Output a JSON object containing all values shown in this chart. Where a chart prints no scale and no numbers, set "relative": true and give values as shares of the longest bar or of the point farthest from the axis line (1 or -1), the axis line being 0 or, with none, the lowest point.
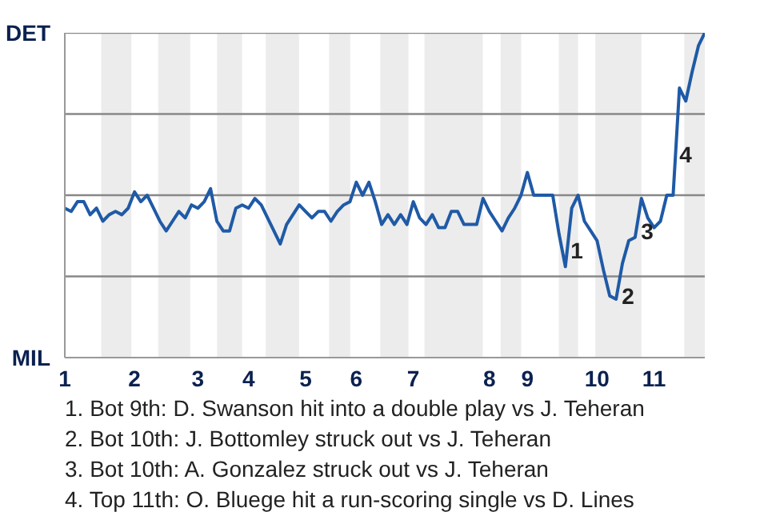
{
  "chart_data": {
    "type": "line",
    "relative": true,
    "categories": [
      "1",
      null,
      null,
      null,
      null,
      null,
      null,
      null,
      null,
      null,
      null,
      "2",
      null,
      null,
      null,
      null,
      null,
      null,
      null,
      null,
      null,
      "3",
      null,
      null,
      null,
      null,
      null,
      null,
      null,
      "4",
      null,
      null,
      null,
      null,
      null,
      null,
      null,
      null,
      "5",
      null,
      null,
      null,
      null,
      null,
      null,
      null,
      "6",
      null,
      null,
      null,
      null,
      null,
      null,
      null,
      null,
      "7",
      null,
      null,
      null,
      null,
      null,
      null,
      null,
      null,
      null,
      null,
      null,
      "8",
      null,
      null,
      null,
      null,
      null,
      "9",
      null,
      null,
      null,
      null,
      null,
      null,
      null,
      null,
      null,
      null,
      "10",
      null,
      null,
      null,
      null,
      null,
      null,
      null,
      null,
      "11",
      null,
      null,
      null,
      null,
      null,
      null,
      null,
      null
    ],
    "series": [
      {
        "color": "#1f5aa6",
        "values": [
          0.46,
          0.45,
          0.48,
          0.48,
          0.44,
          0.46,
          0.42,
          0.44,
          0.45,
          0.44,
          0.46,
          0.51,
          0.48,
          0.5,
          0.46,
          0.42,
          0.39,
          0.42,
          0.45,
          0.43,
          0.47,
          0.46,
          0.48,
          0.52,
          0.42,
          0.39,
          0.39,
          0.46,
          0.47,
          0.46,
          0.49,
          0.47,
          0.43,
          0.39,
          0.35,
          0.41,
          0.44,
          0.47,
          0.45,
          0.43,
          0.45,
          0.45,
          0.42,
          0.45,
          0.47,
          0.48,
          0.54,
          0.5,
          0.54,
          0.48,
          0.41,
          0.44,
          0.41,
          0.44,
          0.41,
          0.48,
          0.43,
          0.41,
          0.44,
          0.4,
          0.4,
          0.45,
          0.45,
          0.41,
          0.41,
          0.41,
          0.49,
          0.45,
          0.42,
          0.39,
          0.43,
          0.46,
          0.5,
          0.57,
          0.5,
          0.5,
          0.5,
          0.5,
          0.38,
          0.28,
          0.46,
          0.5,
          0.42,
          0.39,
          0.36,
          0.27,
          0.19,
          0.18,
          0.29,
          0.36,
          0.37,
          0.49,
          0.43,
          0.4,
          0.42,
          0.5,
          0.5,
          0.83,
          0.79,
          0.88,
          0.96,
          1.0
        ]
      }
    ],
    "grid": false,
    "ref_lines": [
      {
        "axis": "y",
        "value": 0.25,
        "color": "#888888"
      },
      {
        "axis": "y",
        "value": 0.5,
        "color": "#888888"
      },
      {
        "axis": "y",
        "value": 0.75,
        "color": "#888888"
      },
      {
        "axis": "y",
        "value": 1,
        "color": "#888888"
      }
    ],
    "annotations": [
      "DET",
      "MIL",
      "1",
      "2",
      "3",
      "4",
      "1. Bot 9th: D. Swanson hit into a double play vs J. Teheran",
      "2. Bot 10th: J. Bottomley struck out vs J. Teheran",
      "3. Bot 10th: A. Gonzalez struck out vs J. Teheran",
      "4. Top 11th: O. Bluege hit a run-scoring single vs D. Lines"
    ]
  }
}
